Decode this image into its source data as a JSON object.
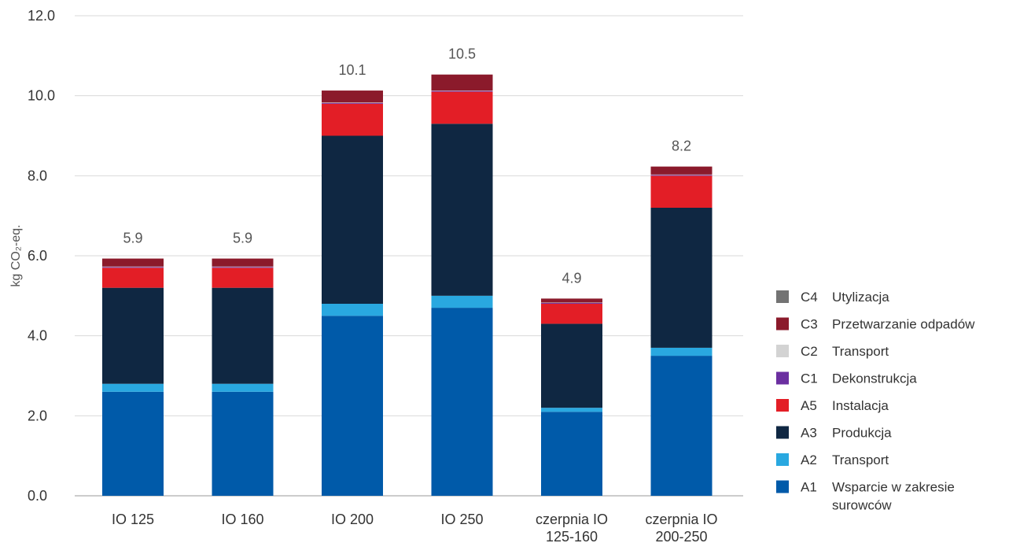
{
  "chart_data": {
    "type": "bar",
    "stacked": true,
    "title": "",
    "xlabel": "",
    "ylabel": "kg CO₂-eq.",
    "ylim": [
      0,
      12
    ],
    "yticks": [
      "0.0",
      "2.0",
      "4.0",
      "6.0",
      "8.0",
      "10.0",
      "12.0"
    ],
    "grid": true,
    "legend_position": "right",
    "categories": [
      [
        "IO 125"
      ],
      [
        "IO 160"
      ],
      [
        "IO 200"
      ],
      [
        "IO 250"
      ],
      [
        "czerpnia IO",
        "125-160"
      ],
      [
        "czerpnia IO",
        "200-250"
      ]
    ],
    "totals": [
      "5.9",
      "5.9",
      "10.1",
      "10.5",
      "4.9",
      "8.2"
    ],
    "series": [
      {
        "code": "A1",
        "name": [
          "Wsparcie w zakresie",
          "surowców"
        ],
        "color": "#005aa9",
        "values": [
          2.6,
          2.6,
          4.5,
          4.7,
          2.1,
          3.5
        ]
      },
      {
        "code": "A2",
        "name": [
          "Transport"
        ],
        "color": "#29a8e0",
        "values": [
          0.2,
          0.2,
          0.3,
          0.3,
          0.1,
          0.2
        ]
      },
      {
        "code": "A3",
        "name": [
          "Produkcja"
        ],
        "color": "#0f2742",
        "values": [
          2.4,
          2.4,
          4.2,
          4.3,
          2.1,
          3.5
        ]
      },
      {
        "code": "A5",
        "name": [
          "Instalacja"
        ],
        "color": "#e31e26",
        "values": [
          0.5,
          0.5,
          0.8,
          0.8,
          0.5,
          0.8
        ]
      },
      {
        "code": "C1",
        "name": [
          "Dekonstrukcja"
        ],
        "color": "#6b2fa0",
        "values": [
          0.02,
          0.02,
          0.02,
          0.02,
          0.02,
          0.02
        ]
      },
      {
        "code": "C2",
        "name": [
          "Transport"
        ],
        "color": "#d3d3d3",
        "values": [
          0.01,
          0.01,
          0.01,
          0.01,
          0.01,
          0.01
        ]
      },
      {
        "code": "C3",
        "name": [
          "Przetwarzanie odpadów"
        ],
        "color": "#8b1a2b",
        "values": [
          0.2,
          0.2,
          0.3,
          0.4,
          0.1,
          0.2
        ]
      },
      {
        "code": "C4",
        "name": [
          "Utylizacja"
        ],
        "color": "#737373",
        "values": [
          0.0,
          0.0,
          0.0,
          0.0,
          0.0,
          0.0
        ]
      }
    ],
    "legend_order": [
      "C4",
      "C3",
      "C2",
      "C1",
      "A5",
      "A3",
      "A2",
      "A1"
    ]
  }
}
